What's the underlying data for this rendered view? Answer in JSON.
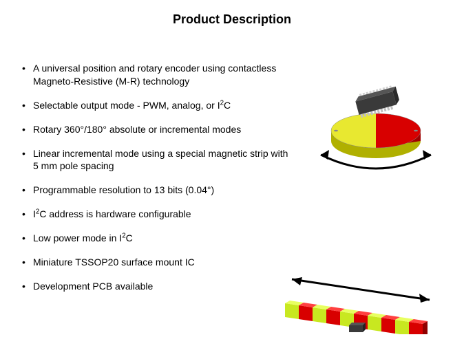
{
  "title": "Product Description",
  "bullets": [
    "A universal position and rotary encoder using contactless Magneto-Resistive (M-R) technology",
    "Selectable output mode - PWM, analog, or I²C",
    "Rotary 360°/180° absolute or incremental modes",
    "Linear incremental mode using a special magnetic strip with 5 mm pole spacing",
    "Programmable resolution to 13 bits (0.04°)",
    "I²C address is hardware configurable",
    "Low power mode in I²C",
    "Miniature TSSOP20 surface mount IC",
    "Development PCB available"
  ],
  "illustrations": {
    "rotary": {
      "type": "infographic",
      "disc_left_color": "#e8e830",
      "disc_right_color": "#d80000",
      "disc_top_ellipse_fill": "#f5f560",
      "disc_top_ellipse_fill_right": "#f01010",
      "disc_side_shadow": "#b0b000",
      "disc_side_shadow_right": "#a00000",
      "chip_body": "#3a3a3a",
      "chip_top": "#555555",
      "chip_pin": "#c0c0c0",
      "arrow_color": "#000000",
      "background": "#ffffff"
    },
    "linear": {
      "type": "infographic",
      "strip_colors": [
        "#c8e820",
        "#d80000",
        "#c8e820",
        "#d80000",
        "#c8e820",
        "#d80000",
        "#c8e820",
        "#d80000",
        "#c8e820",
        "#d80000"
      ],
      "strip_top_light": "#e8ff60",
      "strip_top_light_red": "#ff4040",
      "chip_body": "#3a3a3a",
      "arrow_color": "#000000",
      "background": "#ffffff"
    }
  },
  "colors": {
    "text": "#000000",
    "background": "#ffffff"
  },
  "typography": {
    "title_fontsize": 18,
    "title_weight": "bold",
    "bullet_fontsize": 14
  }
}
